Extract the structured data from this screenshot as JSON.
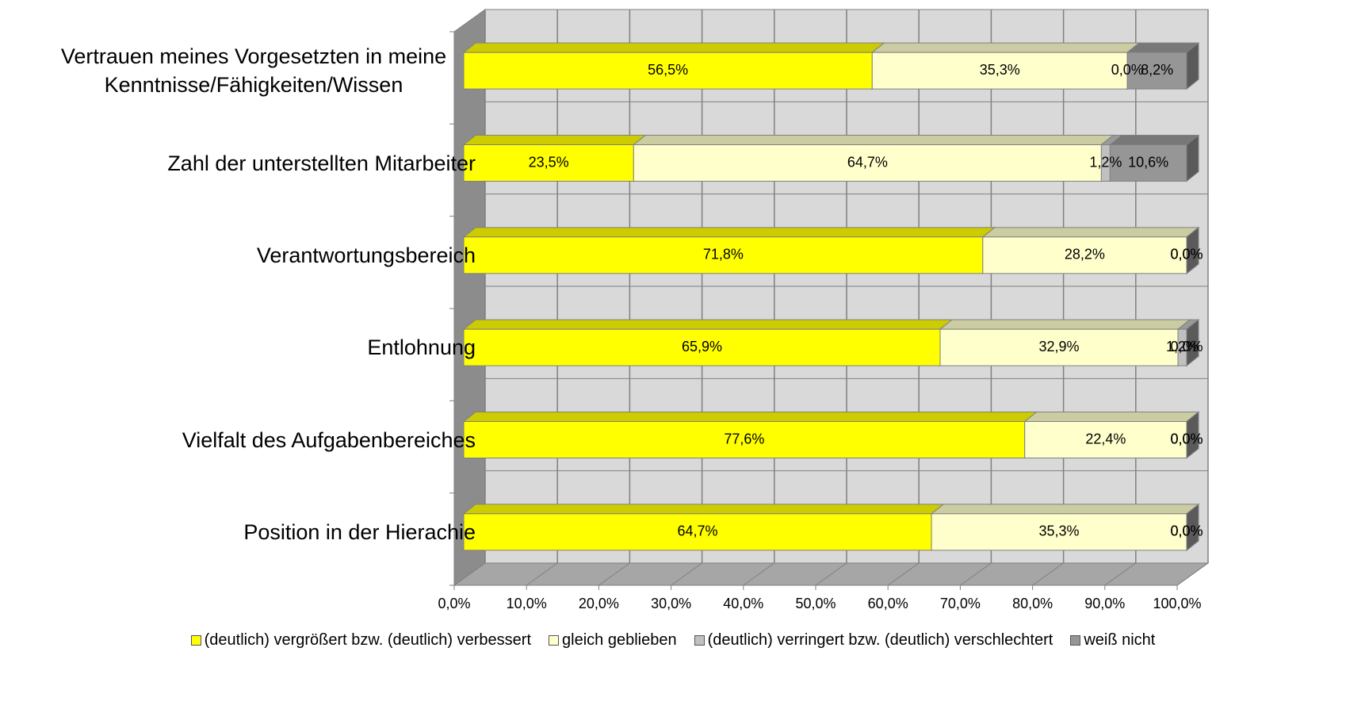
{
  "chart_data": {
    "type": "bar3d-stacked-horizontal",
    "categories": [
      "Vertrauen meines Vorgesetzten in meine Kenntnisse/Fähigkeiten/Wissen",
      "Zahl der unterstellten Mitarbeiter",
      "Verantwortungsbereich",
      "Entlohnung",
      "Vielfalt des Aufgabenbereiches",
      "Position in der Hierachie"
    ],
    "series": [
      {
        "name": "(deutlich) vergrößert bzw. (deutlich) verbessert",
        "color": "#ffff00",
        "values": [
          56.5,
          23.5,
          71.8,
          65.9,
          77.6,
          64.7
        ],
        "value_labels": [
          "56,5%",
          "23,5%",
          "71,8%",
          "65,9%",
          "77,6%",
          "64,7%"
        ]
      },
      {
        "name": "gleich geblieben",
        "color": "#ffffcc",
        "values": [
          35.3,
          64.7,
          28.2,
          32.9,
          22.4,
          35.3
        ],
        "value_labels": [
          "35,3%",
          "64,7%",
          "28,2%",
          "32,9%",
          "22,4%",
          "35,3%"
        ]
      },
      {
        "name": "(deutlich) verringert bzw. (deutlich) verschlechtert",
        "color": "#c0c0c0",
        "values": [
          0.0,
          1.2,
          0.0,
          1.2,
          0.0,
          0.0
        ],
        "value_labels": [
          "0,0%",
          "1,2%",
          "0,0%",
          "1,2%",
          "0,0%",
          "0,0%"
        ]
      },
      {
        "name": "weiß nicht",
        "color": "#969696",
        "values": [
          8.2,
          10.6,
          0.0,
          0.0,
          0.0,
          0.0
        ],
        "value_labels": [
          "8,2%",
          "10,6%",
          "0,0%",
          "0,0%",
          "0,0%",
          "0,0%"
        ]
      }
    ],
    "xlim": [
      0,
      100
    ],
    "xticks": [
      {
        "value": 0,
        "label": "0,0%"
      },
      {
        "value": 10,
        "label": "10,0%"
      },
      {
        "value": 20,
        "label": "20,0%"
      },
      {
        "value": 30,
        "label": "30,0%"
      },
      {
        "value": 40,
        "label": "40,0%"
      },
      {
        "value": 50,
        "label": "50,0%"
      },
      {
        "value": 60,
        "label": "60,0%"
      },
      {
        "value": 70,
        "label": "70,0%"
      },
      {
        "value": 80,
        "label": "80,0%"
      },
      {
        "value": 90,
        "label": "90,0%"
      },
      {
        "value": 100,
        "label": "100,0%"
      }
    ],
    "grid": true,
    "legend": "bottom"
  }
}
